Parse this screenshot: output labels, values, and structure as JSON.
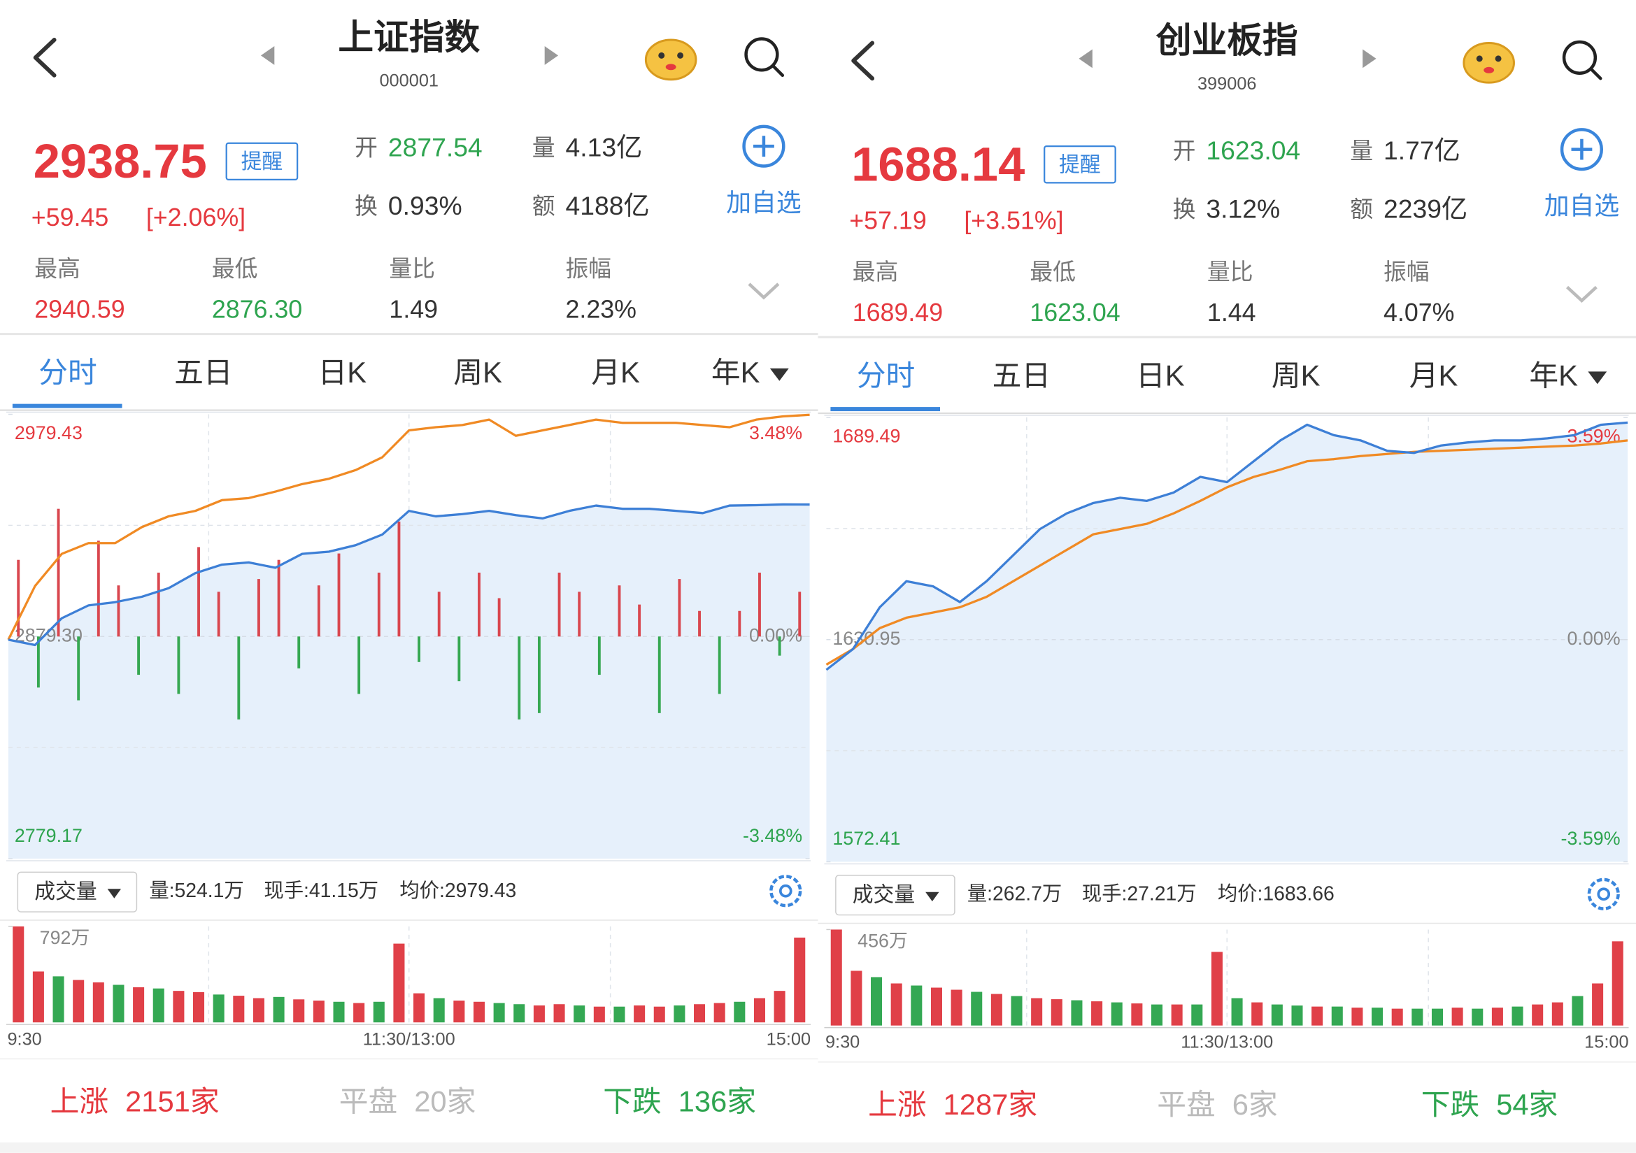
{
  "panels": [
    {
      "header": {
        "title": "上证指数",
        "code": "000001"
      },
      "quote": {
        "price": "2938.75",
        "alert": "提醒",
        "change": "+59.45",
        "change_pct": "[+2.06%]",
        "add": "加自选",
        "fields": [
          {
            "label": "开",
            "value": "2877.54"
          },
          {
            "label": "量",
            "value": "4.13亿"
          },
          {
            "label": "换",
            "value": "0.93%"
          },
          {
            "label": "额",
            "value": "4188亿"
          }
        ],
        "stats": [
          {
            "label": "最高",
            "value": "2940.59"
          },
          {
            "label": "最低",
            "value": "2876.30"
          },
          {
            "label": "量比",
            "value": "1.49"
          },
          {
            "label": "振幅",
            "value": "2.23%"
          }
        ]
      },
      "tabs": [
        "分时",
        "五日",
        "日K",
        "周K",
        "月K",
        "年K"
      ],
      "chart": {
        "type": "line",
        "ylim": [
          2779.17,
          2979.43
        ],
        "yticks": [
          2979.43,
          {
            "value": 2879.3,
            "label": "2879.30"
          },
          2779.17
        ],
        "y2lim": [
          -3.48,
          3.48
        ],
        "y2ticks": [
          {
            "value": 3.48,
            "label": "3.48%"
          },
          {
            "value": 0,
            "label": "0.00%"
          },
          {
            "value": -3.48,
            "label": "-3.48%"
          }
        ],
        "series": [
          {
            "color": "#3d7fd6",
            "values": [
              2877.85,
              2875.43,
              2887.52,
              2893.33,
              2894.78,
              2897.2,
              2901.07,
              2907.84,
              2911.71,
              2912.68,
              2910.26,
              2916.54,
              2917.51,
              2920.41,
              2925.25,
              2935.89,
              2933.47,
              2934.44,
              2935.89,
              2933.95,
              2932.5,
              2935.89,
              2938.31,
              2936.86,
              2936.86,
              2935.89,
              2934.93,
              2938.31,
              2938.5,
              2938.8,
              2938.75
            ]
          },
          {
            "color": "#f08a24",
            "values": [
              2877.85,
              2902.03,
              2916.54,
              2921.38,
              2921.38,
              2928.63,
              2933.47,
              2935.89,
              2940.73,
              2941.7,
              2944.6,
              2947.99,
              2950.4,
              2954.27,
              2960.08,
              2972.17,
              2973.62,
              2974.59,
              2977.01,
              2969.75,
              2972.17,
              2974.59,
              2977.01,
              2975.56,
              2975.56,
              2975.56,
              2974.59,
              2973.62,
              2977.01,
              2978.5,
              2979.2
            ]
          }
        ],
        "bars": {
          "axis": "y2",
          "up_color": "#d9464e",
          "down_color": "#36a852",
          "values": [
            1.2,
            -0.8,
            2.0,
            -1.0,
            1.5,
            0.8,
            -0.6,
            1.0,
            -0.9,
            1.4,
            0.7,
            -1.3,
            0.9,
            1.2,
            -0.5,
            0.8,
            1.3,
            -0.9,
            1.0,
            1.8,
            -0.4,
            0.7,
            -0.7,
            1.0,
            0.6,
            -1.3,
            -1.2,
            1.0,
            0.7,
            -0.6,
            0.8,
            0.5,
            -1.2,
            0.9,
            0.4,
            -0.9,
            0.4,
            1.0,
            -0.3,
            0.7
          ]
        }
      },
      "volume": {
        "selector": "成交量",
        "info": [
          "量:524.1万",
          "现手:41.15万",
          "均价:2979.43"
        ],
        "ylim": [
          0,
          792
        ],
        "yticks": [
          {
            "value": 792,
            "label": "792万"
          }
        ],
        "x_labels": [
          "9:30",
          "11:30/13:00",
          "15:00"
        ],
        "up_color": "#e04048",
        "down_color": "#34a853",
        "values": [
          792,
          420,
          380,
          350,
          330,
          310,
          290,
          280,
          260,
          250,
          230,
          220,
          200,
          210,
          190,
          180,
          170,
          160,
          170,
          650,
          240,
          200,
          180,
          170,
          160,
          150,
          140,
          150,
          140,
          130,
          130,
          140,
          130,
          140,
          150,
          160,
          170,
          200,
          260,
          700
        ],
        "up": [
          true,
          true,
          false,
          true,
          true,
          false,
          true,
          false,
          true,
          true,
          false,
          true,
          true,
          false,
          true,
          true,
          false,
          true,
          false,
          true,
          true,
          false,
          true,
          true,
          false,
          false,
          true,
          true,
          false,
          true,
          false,
          true,
          true,
          false,
          true,
          true,
          false,
          true,
          true,
          true
        ]
      },
      "breadth": [
        {
          "label": "上涨",
          "value": "2151家"
        },
        {
          "label": "平盘",
          "value": "20家"
        },
        {
          "label": "下跌",
          "value": "136家"
        }
      ]
    },
    {
      "header": {
        "title": "创业板指",
        "code": "399006"
      },
      "quote": {
        "price": "1688.14",
        "alert": "提醒",
        "change": "+57.19",
        "change_pct": "[+3.51%]",
        "add": "加自选",
        "fields": [
          {
            "label": "开",
            "value": "1623.04"
          },
          {
            "label": "量",
            "value": "1.77亿"
          },
          {
            "label": "换",
            "value": "3.12%"
          },
          {
            "label": "额",
            "value": "2239亿"
          }
        ],
        "stats": [
          {
            "label": "最高",
            "value": "1689.49"
          },
          {
            "label": "最低",
            "value": "1623.04"
          },
          {
            "label": "量比",
            "value": "1.44"
          },
          {
            "label": "振幅",
            "value": "4.07%"
          }
        ]
      },
      "tabs": [
        "分时",
        "五日",
        "日K",
        "周K",
        "月K",
        "年K"
      ],
      "chart": {
        "type": "line",
        "ylim": [
          1572.41,
          1689.49
        ],
        "yticks": [
          1689.49,
          1630.95,
          1572.41
        ],
        "y2lim": [
          -3.59,
          3.59
        ],
        "y2ticks": [
          {
            "value": 3.59,
            "label": "3.59%"
          },
          {
            "value": 0,
            "label": "0.00%"
          },
          {
            "value": -3.59,
            "label": "-3.59%"
          }
        ],
        "series": [
          {
            "color": "#3d7fd6",
            "values": [
              1622.98,
              1628.48,
              1639.47,
              1646.34,
              1644.96,
              1640.84,
              1646.34,
              1653.21,
              1660.08,
              1664.2,
              1666.95,
              1668.32,
              1667.5,
              1669.7,
              1673.82,
              1672.44,
              1677.94,
              1683.44,
              1687.56,
              1684.81,
              1683.44,
              1680.69,
              1680.14,
              1682.06,
              1682.89,
              1683.44,
              1683.44,
              1683.99,
              1684.81,
              1687.56,
              1688.14
            ]
          },
          {
            "color": "#f08a24",
            "values": [
              1624.35,
              1628.48,
              1633.97,
              1636.72,
              1638.09,
              1639.47,
              1642.22,
              1646.34,
              1650.46,
              1654.58,
              1658.7,
              1660.08,
              1661.45,
              1664.2,
              1667.5,
              1671.07,
              1673.82,
              1675.74,
              1677.94,
              1678.49,
              1679.31,
              1679.86,
              1680.41,
              1680.69,
              1680.96,
              1681.24,
              1681.51,
              1681.79,
              1682.06,
              1682.61,
              1683.44
            ]
          }
        ]
      },
      "volume": {
        "selector": "成交量",
        "info": [
          "量:262.7万",
          "现手:27.21万",
          "均价:1683.66"
        ],
        "ylim": [
          0,
          456
        ],
        "yticks": [
          {
            "value": 456,
            "label": "456万"
          }
        ],
        "x_labels": [
          "9:30",
          "11:30/13:00",
          "15:00"
        ],
        "up_color": "#e04048",
        "down_color": "#34a853",
        "values": [
          456,
          260,
          230,
          200,
          190,
          180,
          170,
          160,
          150,
          140,
          130,
          125,
          120,
          115,
          110,
          105,
          100,
          100,
          100,
          350,
          130,
          110,
          100,
          95,
          90,
          90,
          85,
          85,
          80,
          80,
          80,
          85,
          80,
          85,
          90,
          100,
          110,
          140,
          200,
          400
        ],
        "up": [
          true,
          true,
          false,
          true,
          false,
          true,
          true,
          false,
          true,
          false,
          true,
          true,
          false,
          true,
          false,
          true,
          false,
          true,
          false,
          true,
          false,
          true,
          false,
          false,
          true,
          false,
          true,
          false,
          true,
          false,
          false,
          true,
          false,
          true,
          false,
          true,
          true,
          false,
          true,
          true
        ]
      },
      "breadth": [
        {
          "label": "上涨",
          "value": "1287家"
        },
        {
          "label": "平盘",
          "value": "6家"
        },
        {
          "label": "下跌",
          "value": "54家"
        }
      ]
    }
  ]
}
